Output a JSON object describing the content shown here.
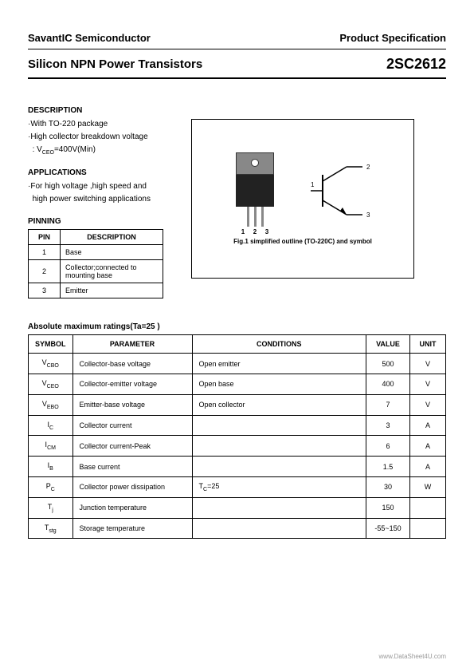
{
  "header": {
    "company": "SavantIC Semiconductor",
    "doc_type": "Product Specification"
  },
  "title": {
    "left": "Silicon NPN Power Transistors",
    "right": "2SC2612"
  },
  "description": {
    "heading": "DESCRIPTION",
    "lines": [
      "·With TO-220 package",
      "·High collector breakdown voltage"
    ],
    "vceo_line_prefix": ": V",
    "vceo_sub": "CEO",
    "vceo_line_suffix": "=400V(Min)"
  },
  "applications": {
    "heading": "APPLICATIONS",
    "lines": [
      "·For high voltage ,high speed and",
      "high power switching applications"
    ]
  },
  "pinning": {
    "heading": "PINNING",
    "col_pin": "PIN",
    "col_desc": "DESCRIPTION",
    "rows": [
      {
        "pin": "1",
        "desc": "Base"
      },
      {
        "pin": "2",
        "desc": "Collector;connected to mounting base"
      },
      {
        "pin": "3",
        "desc": "Emitter"
      }
    ]
  },
  "figure": {
    "lead1": "1",
    "lead2": "2",
    "lead3": "3",
    "sym_c": "2",
    "sym_b": "1",
    "sym_e": "3",
    "caption": "Fig.1 simplified outline (TO-220C) and symbol"
  },
  "ratings": {
    "title": "Absolute maximum ratings(Ta=25 )",
    "cols": {
      "symbol": "SYMBOL",
      "param": "PARAMETER",
      "cond": "CONDITIONS",
      "value": "VALUE",
      "unit": "UNIT"
    },
    "rows": [
      {
        "sym_base": "V",
        "sym_sub": "CBO",
        "param": "Collector-base voltage",
        "cond": "Open emitter",
        "value": "500",
        "unit": "V"
      },
      {
        "sym_base": "V",
        "sym_sub": "CEO",
        "param": "Collector-emitter voltage",
        "cond": "Open base",
        "value": "400",
        "unit": "V"
      },
      {
        "sym_base": "V",
        "sym_sub": "EBO",
        "param": "Emitter-base voltage",
        "cond": "Open collector",
        "value": "7",
        "unit": "V"
      },
      {
        "sym_base": "I",
        "sym_sub": "C",
        "param": "Collector current",
        "cond": "",
        "value": "3",
        "unit": "A"
      },
      {
        "sym_base": "I",
        "sym_sub": "CM",
        "param": "Collector current-Peak",
        "cond": "",
        "value": "6",
        "unit": "A"
      },
      {
        "sym_base": "I",
        "sym_sub": "B",
        "param": "Base current",
        "cond": "",
        "value": "1.5",
        "unit": "A"
      },
      {
        "sym_base": "P",
        "sym_sub": "C",
        "param": "Collector power dissipation",
        "cond_base": "T",
        "cond_sub": "C",
        "cond_suffix": "=25",
        "value": "30",
        "unit": "W"
      },
      {
        "sym_base": "T",
        "sym_sub": "j",
        "param": "Junction temperature",
        "cond": "",
        "value": "150",
        "unit": ""
      },
      {
        "sym_base": "T",
        "sym_sub": "stg",
        "param": "Storage temperature",
        "cond": "",
        "value": "-55~150",
        "unit": ""
      }
    ]
  },
  "footer": "www.DataSheet4U.com"
}
